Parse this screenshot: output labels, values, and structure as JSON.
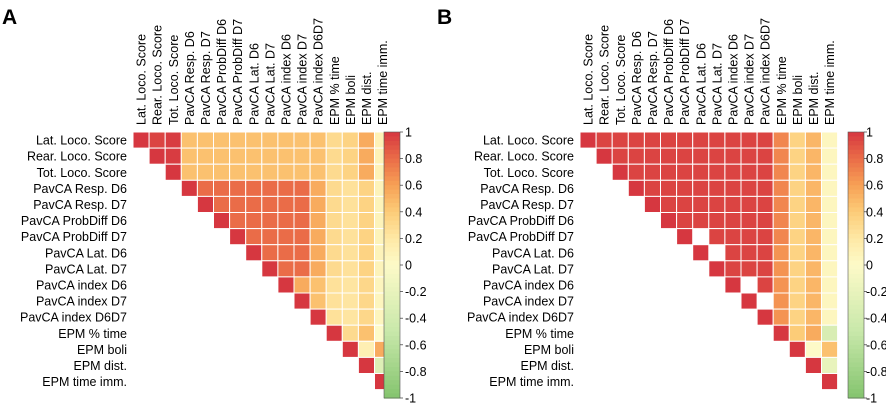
{
  "chart_data": [
    {
      "type": "heatmap",
      "panel_label": "A",
      "variables": [
        "Lat. Loco. Score",
        "Rear. Loco. Score",
        "Tot. Loco. Score",
        "PavCA Resp. D6",
        "PavCA Resp. D7",
        "PavCA ProbDiff D6",
        "PavCA ProbDiff D7",
        "PavCA Lat. D6",
        "PavCA Lat. D7",
        "PavCA index D6",
        "PavCA index D7",
        "PavCA index D6D7",
        "EPM % time",
        "EPM boli",
        "EPM dist.",
        "EPM time imm."
      ],
      "matrix_upper": [
        [
          1,
          0.95,
          0.98,
          0.45,
          0.45,
          0.45,
          0.45,
          0.45,
          0.45,
          0.45,
          0.45,
          0.45,
          0.3,
          0.35,
          0.55,
          0.1
        ],
        [
          null,
          1,
          0.98,
          0.45,
          0.45,
          0.45,
          0.45,
          0.45,
          0.45,
          0.45,
          0.45,
          0.45,
          0.3,
          0.35,
          0.55,
          0.1
        ],
        [
          null,
          null,
          1,
          0.45,
          0.45,
          0.45,
          0.45,
          0.45,
          0.45,
          0.45,
          0.45,
          0.45,
          0.3,
          0.35,
          0.55,
          0.1
        ],
        [
          null,
          null,
          null,
          1,
          0.8,
          0.8,
          0.8,
          0.8,
          0.8,
          0.8,
          0.8,
          0.55,
          0.3,
          0.25,
          0.35,
          0.08
        ],
        [
          null,
          null,
          null,
          null,
          1,
          0.8,
          0.8,
          0.8,
          0.8,
          0.8,
          0.8,
          0.55,
          0.3,
          0.25,
          0.35,
          0.08
        ],
        [
          null,
          null,
          null,
          null,
          null,
          1,
          0.8,
          0.8,
          0.8,
          0.8,
          0.8,
          0.55,
          0.3,
          0.25,
          0.35,
          0.08
        ],
        [
          null,
          null,
          null,
          null,
          null,
          null,
          1,
          0.8,
          0.8,
          0.8,
          0.8,
          0.55,
          0.3,
          0.25,
          0.35,
          0.08
        ],
        [
          null,
          null,
          null,
          null,
          null,
          null,
          null,
          1,
          0.8,
          0.8,
          0.8,
          0.55,
          0.3,
          0.25,
          0.35,
          0.08
        ],
        [
          null,
          null,
          null,
          null,
          null,
          null,
          null,
          null,
          1,
          0.8,
          0.8,
          0.55,
          0.3,
          0.25,
          0.35,
          0.08
        ],
        [
          null,
          null,
          null,
          null,
          null,
          null,
          null,
          null,
          null,
          1,
          0.55,
          0.45,
          0.25,
          0.22,
          0.32,
          0.06
        ],
        [
          null,
          null,
          null,
          null,
          null,
          null,
          null,
          null,
          null,
          null,
          1,
          0.45,
          0.25,
          0.22,
          0.32,
          0.06
        ],
        [
          null,
          null,
          null,
          null,
          null,
          null,
          null,
          null,
          null,
          null,
          null,
          1,
          0.25,
          0.22,
          0.32,
          0.06
        ],
        [
          null,
          null,
          null,
          null,
          null,
          null,
          null,
          null,
          null,
          null,
          null,
          null,
          1,
          0.3,
          0.45,
          0.0
        ],
        [
          null,
          null,
          null,
          null,
          null,
          null,
          null,
          null,
          null,
          null,
          null,
          null,
          null,
          1,
          0.12,
          0.55
        ],
        [
          null,
          null,
          null,
          null,
          null,
          null,
          null,
          null,
          null,
          null,
          null,
          null,
          null,
          null,
          1,
          -0.3
        ],
        [
          null,
          null,
          null,
          null,
          null,
          null,
          null,
          null,
          null,
          null,
          null,
          null,
          null,
          null,
          null,
          1
        ]
      ],
      "colorbar": {
        "min": -1,
        "max": 1,
        "ticks": [
          1,
          0.8,
          0.6,
          0.4,
          0.2,
          0,
          -0.2,
          -0.4,
          -0.6,
          -0.8,
          -1
        ],
        "tick_labels": [
          "1",
          "0.8",
          "0.6",
          "0.4",
          "0.2",
          "0",
          "-0.2",
          "-0.4",
          "-0.6",
          "-0.8",
          "-1"
        ]
      }
    },
    {
      "type": "heatmap",
      "panel_label": "B",
      "variables": [
        "Lat. Loco. Score",
        "Rear. Loco. Score",
        "Tot. Loco. Score",
        "PavCA Resp. D6",
        "PavCA Resp. D7",
        "PavCA ProbDiff D6",
        "PavCA ProbDiff D7",
        "PavCA Lat. D6",
        "PavCA Lat. D7",
        "PavCA index D6",
        "PavCA index D7",
        "PavCA index D6D7",
        "EPM % time",
        "EPM boli",
        "EPM dist.",
        "EPM time imm."
      ],
      "matrix_upper": [
        [
          1,
          0.95,
          0.95,
          0.95,
          0.95,
          0.95,
          0.95,
          0.95,
          0.95,
          0.95,
          0.95,
          0.95,
          0.7,
          0.35,
          0.5,
          0.05
        ],
        [
          null,
          1,
          0.95,
          0.95,
          0.95,
          0.95,
          0.95,
          0.95,
          0.95,
          0.95,
          0.95,
          0.95,
          0.7,
          0.35,
          0.5,
          0.05
        ],
        [
          null,
          null,
          1,
          0.95,
          0.95,
          0.95,
          0.95,
          0.95,
          0.95,
          0.95,
          0.95,
          0.95,
          0.7,
          0.35,
          0.5,
          0.05
        ],
        [
          null,
          null,
          null,
          1,
          0.95,
          0.95,
          0.95,
          0.95,
          0.95,
          0.95,
          0.95,
          0.95,
          0.7,
          0.35,
          0.5,
          0.05
        ],
        [
          null,
          null,
          null,
          null,
          1,
          0.95,
          0.95,
          0.95,
          0.95,
          0.95,
          0.95,
          0.95,
          0.7,
          0.35,
          0.5,
          0.05
        ],
        [
          null,
          null,
          null,
          null,
          null,
          1,
          0.95,
          0.95,
          0.95,
          0.95,
          0.95,
          0.95,
          0.7,
          0.35,
          0.5,
          0.05
        ],
        [
          null,
          null,
          null,
          null,
          null,
          null,
          1,
          null,
          0.95,
          0.95,
          0.95,
          0.95,
          0.7,
          0.35,
          0.5,
          0.05
        ],
        [
          null,
          null,
          null,
          null,
          null,
          null,
          null,
          1,
          null,
          0.95,
          0.95,
          0.95,
          0.65,
          0.35,
          0.5,
          0.05
        ],
        [
          null,
          null,
          null,
          null,
          null,
          null,
          null,
          null,
          1,
          0.95,
          0.95,
          0.95,
          0.65,
          0.35,
          0.5,
          0.05
        ],
        [
          null,
          null,
          null,
          null,
          null,
          null,
          null,
          null,
          null,
          1,
          null,
          0.95,
          0.65,
          0.35,
          0.5,
          0.05
        ],
        [
          null,
          null,
          null,
          null,
          null,
          null,
          null,
          null,
          null,
          null,
          1,
          null,
          0.65,
          0.35,
          0.5,
          0.05
        ],
        [
          null,
          null,
          null,
          null,
          null,
          null,
          null,
          null,
          null,
          null,
          null,
          1,
          0.65,
          0.35,
          0.5,
          0.05
        ],
        [
          null,
          null,
          null,
          null,
          null,
          null,
          null,
          null,
          null,
          null,
          null,
          null,
          1,
          0.4,
          0.55,
          -0.35
        ],
        [
          null,
          null,
          null,
          null,
          null,
          null,
          null,
          null,
          null,
          null,
          null,
          null,
          null,
          1,
          0.0,
          0.45
        ],
        [
          null,
          null,
          null,
          null,
          null,
          null,
          null,
          null,
          null,
          null,
          null,
          null,
          null,
          null,
          1,
          -0.2
        ],
        [
          null,
          null,
          null,
          null,
          null,
          null,
          null,
          null,
          null,
          null,
          null,
          null,
          null,
          null,
          null,
          1
        ]
      ],
      "colorbar": {
        "min": -1,
        "max": 1,
        "ticks": [
          1,
          0.8,
          0.6,
          0.4,
          0.2,
          0,
          -0.2,
          -0.4,
          -0.6,
          -0.8,
          -1
        ],
        "tick_labels": [
          "1",
          "0.8",
          "0.6",
          "0.4",
          "0.2",
          "0",
          "-0.2",
          "-0.4",
          "-0.6",
          "-0.8",
          "-1"
        ]
      }
    }
  ]
}
